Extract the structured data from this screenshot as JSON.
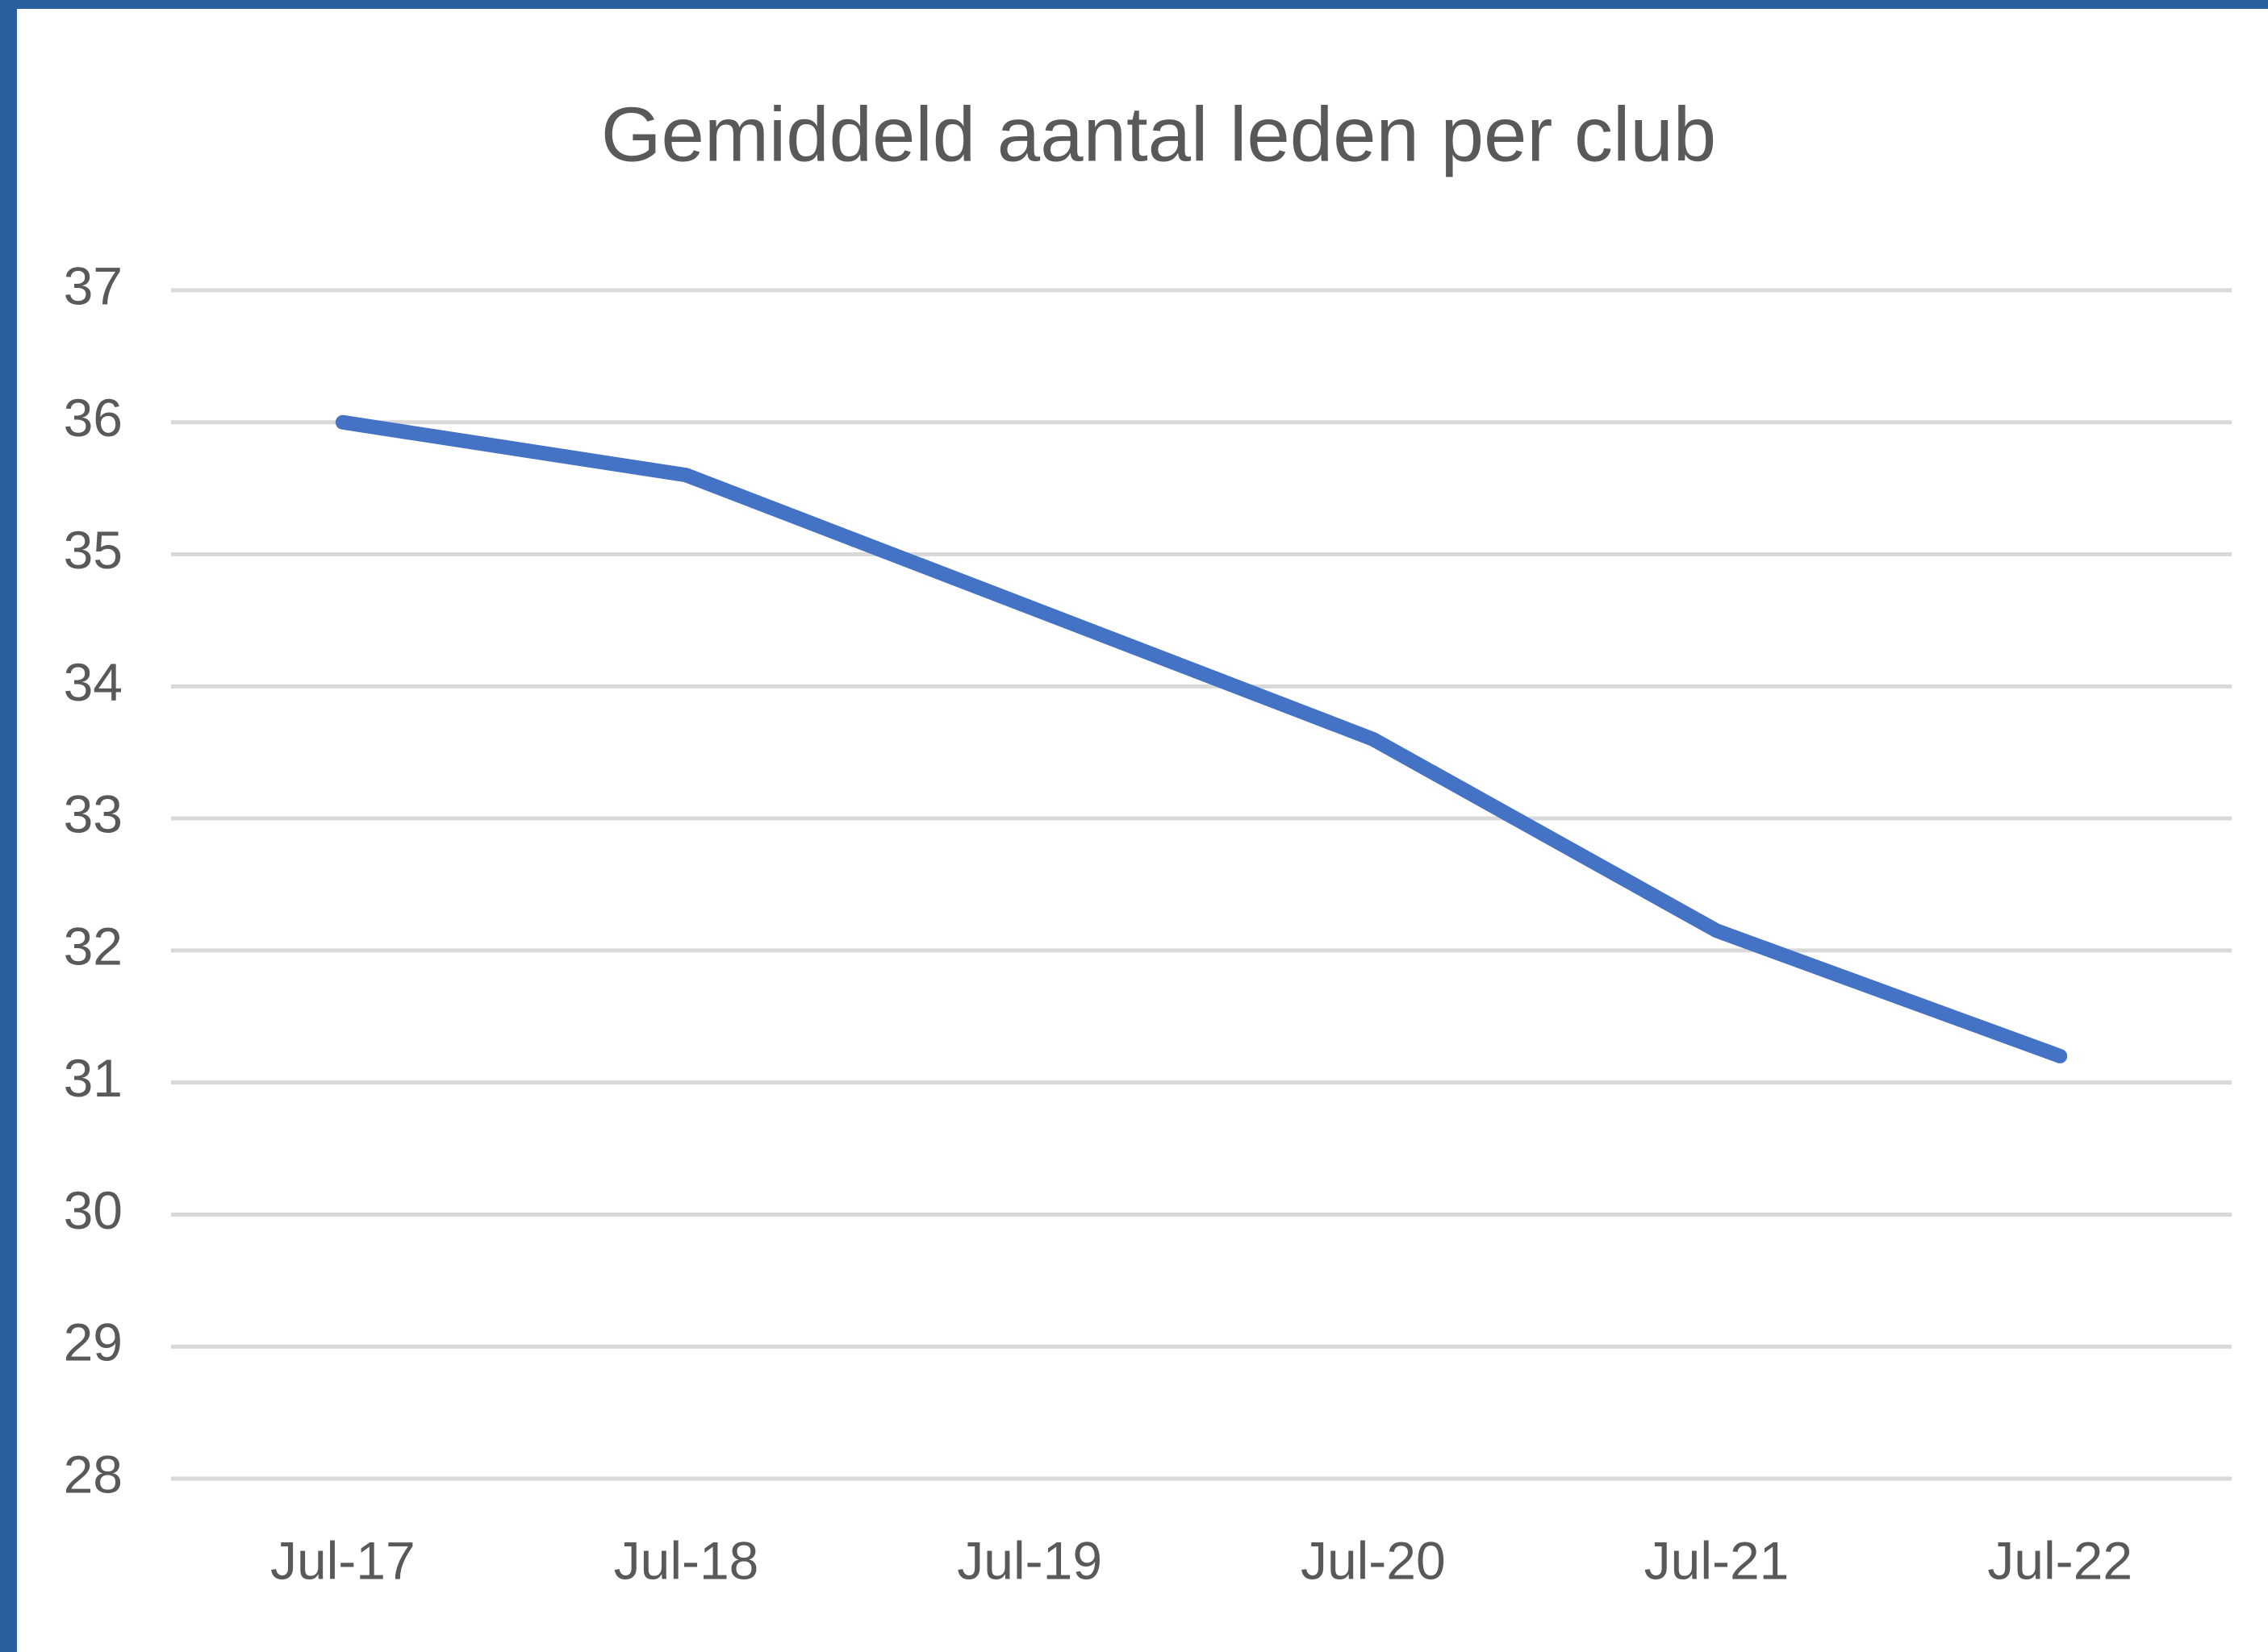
{
  "chart_data": {
    "type": "line",
    "title": "Gemiddeld aantal leden per club",
    "categories": [
      "Jul-17",
      "Jul-18",
      "Jul-19",
      "Jul-20",
      "Jul-21",
      "Jul-22"
    ],
    "series": [
      {
        "name": "Gemiddeld aantal leden per club",
        "color": "#4472c4",
        "values": [
          36.0,
          35.6,
          34.6,
          33.6,
          32.15,
          31.2
        ]
      }
    ],
    "ylim": [
      28,
      37
    ],
    "yticks": [
      28,
      29,
      30,
      31,
      32,
      33,
      34,
      35,
      36,
      37
    ],
    "grid": true
  }
}
